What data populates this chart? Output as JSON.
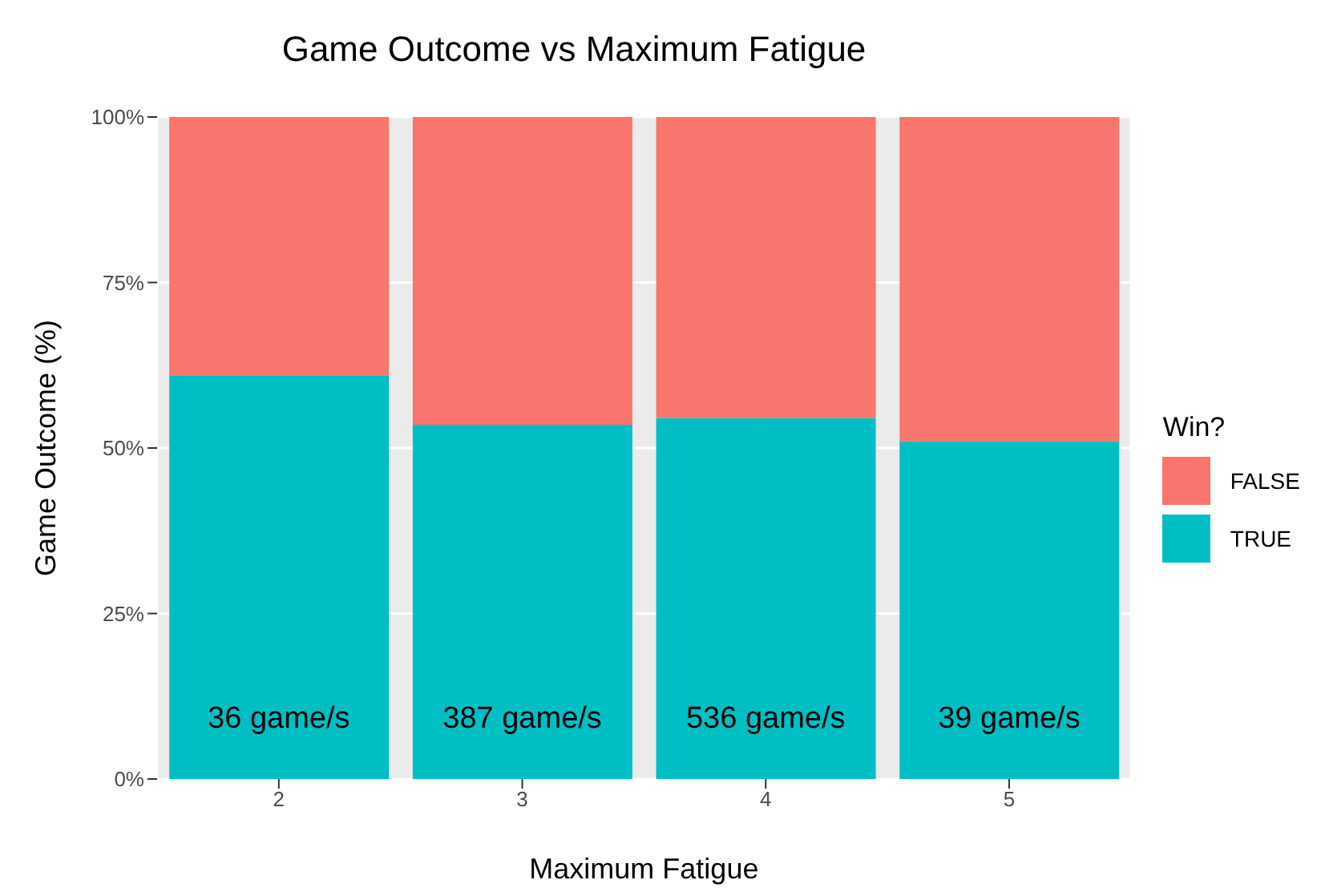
{
  "chart_data": {
    "type": "bar",
    "title": "Game Outcome vs Maximum Fatigue",
    "xlabel": "Maximum Fatigue",
    "ylabel": "Game Outcome (%)",
    "legend_title": "Win?",
    "categories": [
      "2",
      "3",
      "4",
      "5"
    ],
    "stacked": true,
    "series": [
      {
        "name": "TRUE",
        "color": "#00bfc4",
        "values": [
          61,
          53.5,
          54.5,
          51
        ]
      },
      {
        "name": "FALSE",
        "color": "#f8766d",
        "values": [
          39,
          46.5,
          45.5,
          49
        ]
      }
    ],
    "ylim": [
      0,
      100
    ],
    "yticks": [
      {
        "value": 0,
        "label": "0%"
      },
      {
        "value": 25,
        "label": "25%"
      },
      {
        "value": 50,
        "label": "50%"
      },
      {
        "value": 75,
        "label": "75%"
      },
      {
        "value": 100,
        "label": "100%"
      }
    ],
    "grid": true,
    "legend": "right",
    "annotations": [
      "36 game/s",
      "387 game/s",
      "536 game/s",
      "39 game/s"
    ]
  }
}
